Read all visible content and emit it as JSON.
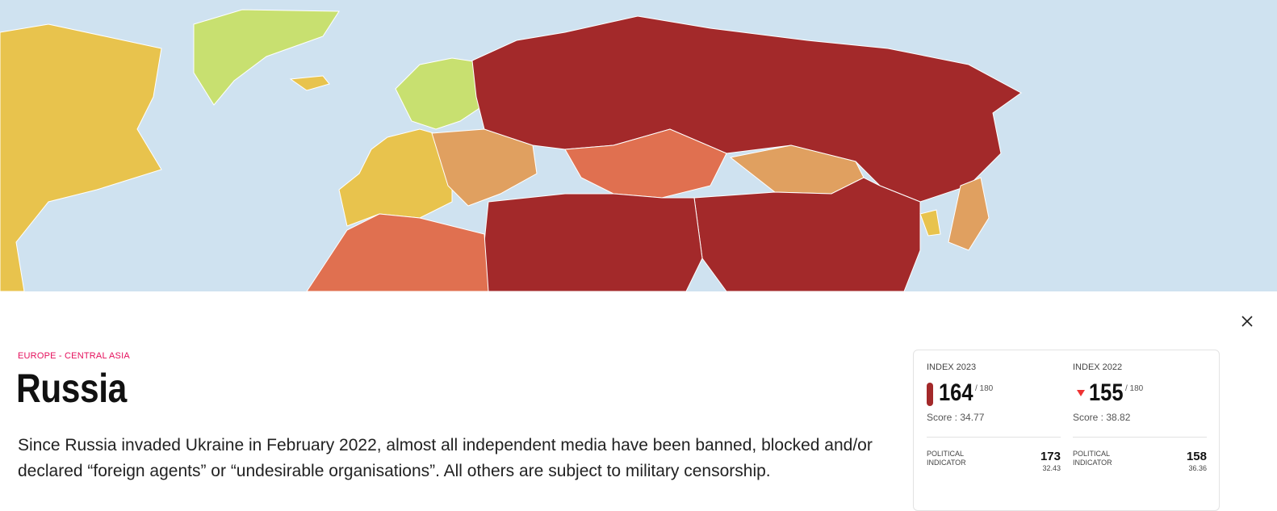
{
  "region": "EUROPE - CENTRAL ASIA",
  "country": "Russia",
  "description": "Since Russia invaded Ukraine in February 2022, almost all independent media have been banned, blocked and/or declared “foreign agents” or “undesirable organisations”. All others are subject to military censorship.",
  "indexes": [
    {
      "label": "INDEX 2023",
      "rank": 164,
      "total": "/ 180",
      "score": "Score : 34.77",
      "indicators": [
        {
          "label": "POLITICAL INDICATOR",
          "rank": 173,
          "score": "32.43"
        }
      ]
    },
    {
      "label": "INDEX 2022",
      "rank": 155,
      "total": "/ 180",
      "score": "Score : 38.82",
      "indicators": [
        {
          "label": "POLITICAL INDICATOR",
          "rank": 158,
          "score": "36.36"
        }
      ]
    }
  ]
}
